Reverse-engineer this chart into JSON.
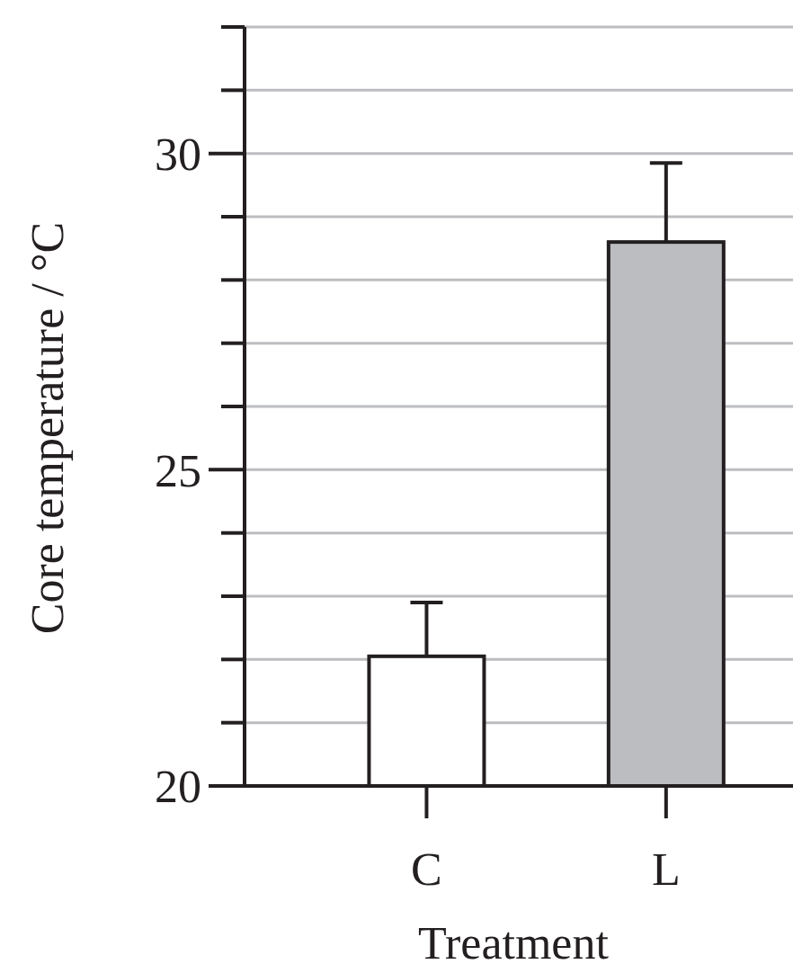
{
  "chart_data": {
    "type": "bar",
    "xlabel": "Treatment",
    "ylabel": "Core temperature / °C",
    "categories": [
      "C",
      "L"
    ],
    "values": [
      22.05,
      28.6
    ],
    "colors": [
      "#ffffff",
      "#bcbdc0"
    ],
    "errors": [
      [
        22.05,
        22.9
      ],
      [
        28.6,
        29.85
      ]
    ],
    "ylim": [
      20,
      32
    ],
    "yticks": [
      20,
      {
        "value": 21,
        "label": null
      },
      {
        "value": 22,
        "label": null
      },
      {
        "value": 23,
        "label": null
      },
      {
        "value": 24,
        "label": null
      },
      25,
      {
        "value": 26,
        "label": null
      },
      {
        "value": 27,
        "label": null
      },
      {
        "value": 28,
        "label": null
      },
      {
        "value": 29,
        "label": null
      },
      30,
      {
        "value": 31,
        "label": null
      },
      {
        "value": 32,
        "label": null
      }
    ],
    "grid": "y"
  }
}
